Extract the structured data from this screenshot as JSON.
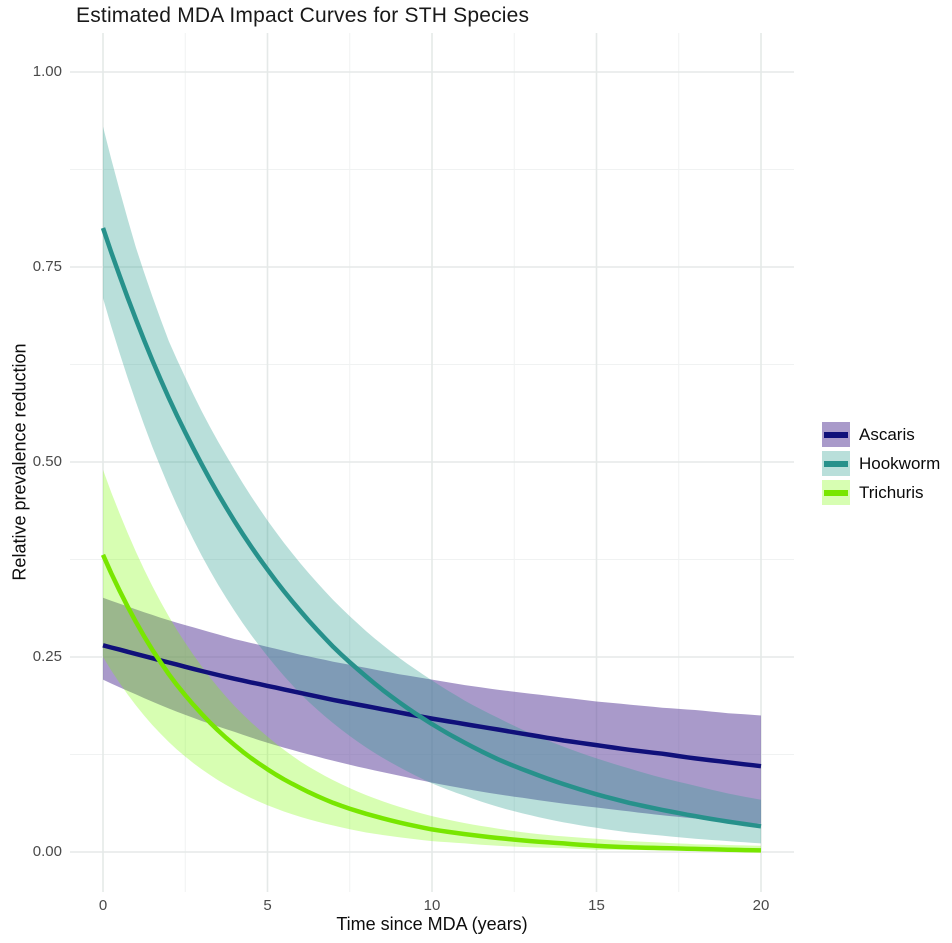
{
  "title": "Estimated MDA Impact Curves for STH Species",
  "axes": {
    "x": {
      "title": "Time since MDA (years)",
      "tick_labels": [
        "0",
        "5",
        "10",
        "15",
        "20"
      ],
      "tick_values": [
        0,
        5,
        10,
        15,
        20
      ],
      "minor_ticks": [
        2.5,
        7.5,
        12.5,
        17.5
      ],
      "range": [
        0,
        20
      ]
    },
    "y": {
      "title": "Relative prevalence reduction",
      "tick_labels": [
        "0.00",
        "0.25",
        "0.50",
        "0.75",
        "1.00"
      ],
      "tick_values": [
        0,
        0.25,
        0.5,
        0.75,
        1.0
      ],
      "minor_ticks": [
        0.125,
        0.375,
        0.625,
        0.875
      ],
      "range": [
        0,
        1
      ]
    }
  },
  "legend": {
    "items": [
      {
        "label": "Ascaris",
        "line_color": "#10107a",
        "band_color": "#6a51a3",
        "band_opacity": 0.58
      },
      {
        "label": "Hookworm",
        "line_color": "#27918b",
        "band_color": "#2a9d8f",
        "band_opacity": 0.33
      },
      {
        "label": "Trichuris",
        "line_color": "#78e600",
        "band_color": "#7cfc00",
        "band_opacity": 0.3
      }
    ],
    "position": "right"
  },
  "style": {
    "grid_major_color": "#e5e9e8",
    "grid_minor_color": "#f0f2f2",
    "background": "#ffffff",
    "line_width": 4.5
  },
  "chart_data": {
    "type": "line",
    "title": "Estimated MDA Impact Curves for STH Species",
    "xlabel": "Time since MDA (years)",
    "ylabel": "Relative prevalence reduction",
    "xlim": [
      0,
      20
    ],
    "ylim": [
      0,
      1
    ],
    "grid": true,
    "legend_position": "right",
    "x": [
      0,
      1,
      2,
      3,
      4,
      5,
      6,
      7,
      8,
      9,
      10,
      11,
      12,
      13,
      14,
      15,
      16,
      17,
      18,
      19,
      20
    ],
    "series": [
      {
        "name": "Ascaris",
        "line_color": "#10107a",
        "band_color": "#6a51a3",
        "band_opacity": 0.58,
        "mean": [
          0.265,
          0.254,
          0.243,
          0.232,
          0.222,
          0.213,
          0.204,
          0.195,
          0.187,
          0.179,
          0.171,
          0.164,
          0.157,
          0.15,
          0.143,
          0.137,
          0.131,
          0.126,
          0.12,
          0.115,
          0.11
        ],
        "lower": [
          0.221,
          0.202,
          0.184,
          0.168,
          0.154,
          0.14,
          0.128,
          0.117,
          0.107,
          0.098,
          0.089,
          0.081,
          0.074,
          0.068,
          0.062,
          0.057,
          0.052,
          0.047,
          0.043,
          0.039,
          0.036
        ],
        "upper": [
          0.326,
          0.311,
          0.297,
          0.285,
          0.273,
          0.263,
          0.253,
          0.244,
          0.236,
          0.228,
          0.221,
          0.214,
          0.208,
          0.203,
          0.198,
          0.193,
          0.189,
          0.185,
          0.182,
          0.178,
          0.175
        ]
      },
      {
        "name": "Hookworm",
        "line_color": "#27918b",
        "band_color": "#2a9d8f",
        "band_opacity": 0.33,
        "mean": [
          0.8,
          0.683,
          0.582,
          0.497,
          0.424,
          0.362,
          0.309,
          0.263,
          0.225,
          0.192,
          0.164,
          0.14,
          0.119,
          0.102,
          0.087,
          0.074,
          0.063,
          0.054,
          0.046,
          0.039,
          0.033
        ],
        "lower": [
          0.71,
          0.577,
          0.468,
          0.38,
          0.309,
          0.251,
          0.203,
          0.165,
          0.134,
          0.109,
          0.088,
          0.072,
          0.058,
          0.047,
          0.038,
          0.031,
          0.025,
          0.021,
          0.017,
          0.014,
          0.011
        ],
        "upper": [
          0.93,
          0.775,
          0.655,
          0.565,
          0.49,
          0.425,
          0.37,
          0.323,
          0.283,
          0.249,
          0.22,
          0.194,
          0.172,
          0.152,
          0.135,
          0.12,
          0.107,
          0.095,
          0.085,
          0.075,
          0.067
        ]
      },
      {
        "name": "Trichuris",
        "line_color": "#78e600",
        "band_color": "#7cfc00",
        "band_opacity": 0.3,
        "mean": [
          0.381,
          0.295,
          0.228,
          0.177,
          0.137,
          0.106,
          0.082,
          0.063,
          0.049,
          0.038,
          0.029,
          0.023,
          0.018,
          0.014,
          0.011,
          0.008,
          0.006,
          0.005,
          0.004,
          0.003,
          0.002
        ],
        "lower": [
          0.25,
          0.188,
          0.141,
          0.106,
          0.08,
          0.06,
          0.045,
          0.034,
          0.025,
          0.019,
          0.014,
          0.011,
          0.008,
          0.006,
          0.005,
          0.003,
          0.003,
          0.002,
          0.002,
          0.001,
          0.001
        ],
        "upper": [
          0.49,
          0.385,
          0.302,
          0.238,
          0.187,
          0.148,
          0.116,
          0.092,
          0.073,
          0.058,
          0.046,
          0.037,
          0.03,
          0.024,
          0.02,
          0.017,
          0.014,
          0.012,
          0.01,
          0.009,
          0.008
        ]
      }
    ]
  }
}
